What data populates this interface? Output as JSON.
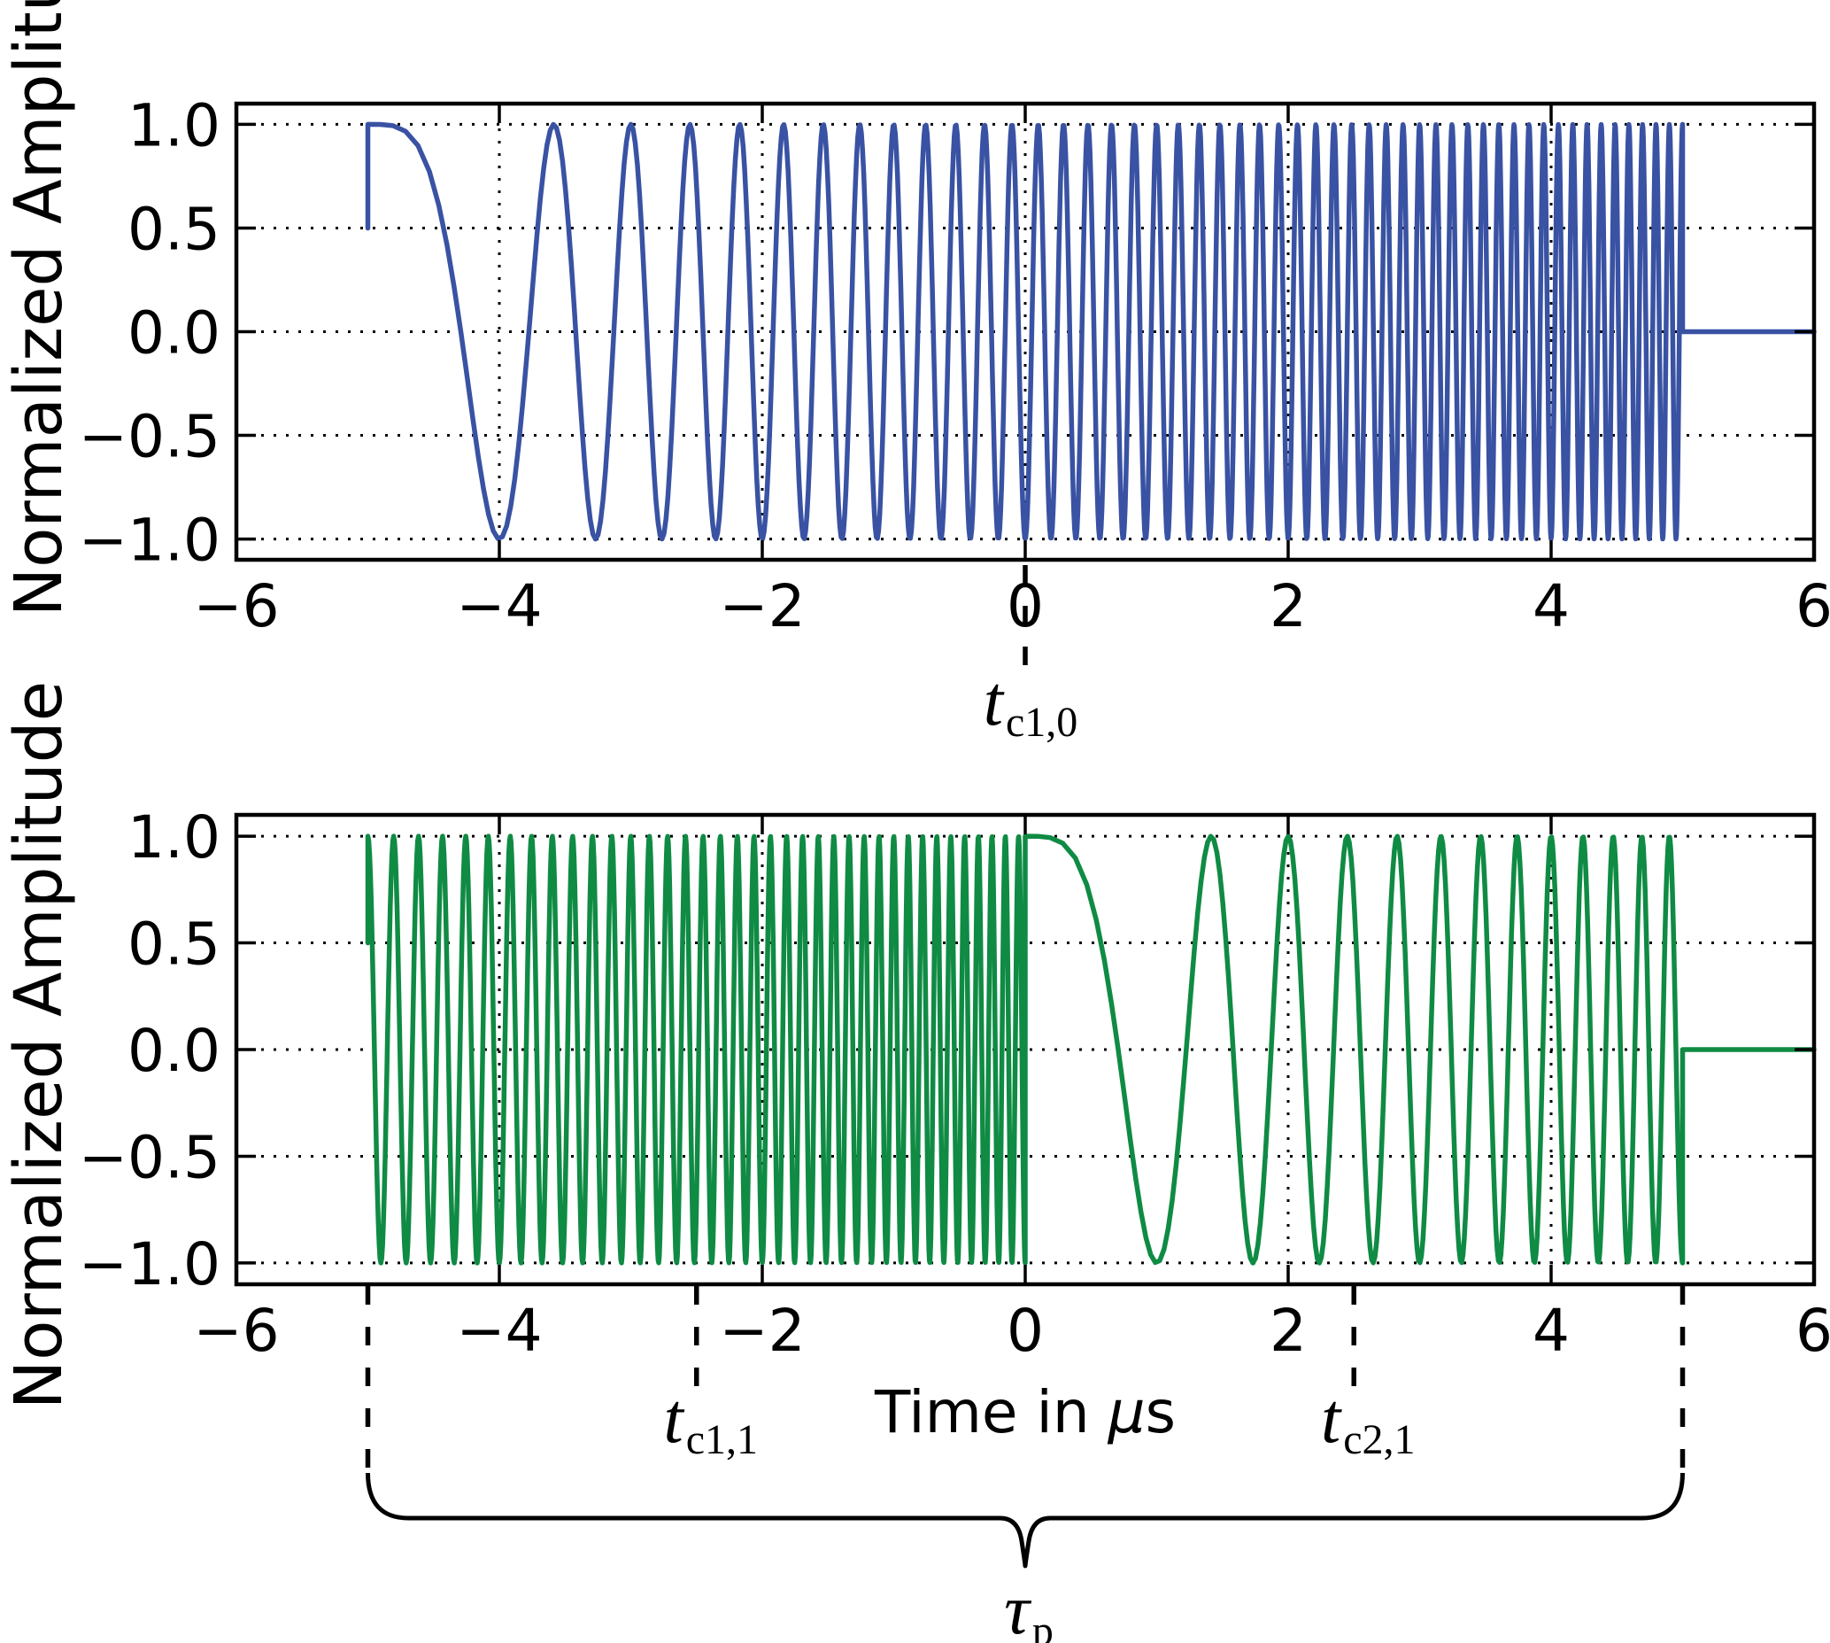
{
  "figure": {
    "title": "",
    "ylabel": "Normalized Amplitude",
    "xlabel_pre": "Time in ",
    "xlabel_mu": "μ",
    "xlabel_post": "s",
    "background_color": "#ffffff",
    "axis_color": "#000000",
    "grid_style": "dotted"
  },
  "chart_data": [
    {
      "type": "line",
      "panel": "top",
      "title": "",
      "ylabel": "Normalized Amplitude",
      "xlabel": "",
      "line_color": "#3952a3",
      "xlim": [
        -6,
        6
      ],
      "ylim": [
        -1.1,
        1.1
      ],
      "x_ticks": [
        -6,
        -4,
        -2,
        0,
        2,
        4,
        6
      ],
      "x_tick_labels": [
        "−6",
        "−4",
        "−2",
        "0",
        "2",
        "4",
        "6"
      ],
      "y_ticks": [
        1.0,
        0.5,
        0.0,
        -0.5,
        -1.0
      ],
      "y_tick_labels": [
        "1.0",
        "0.5",
        "0.0",
        "−0.5",
        "−1.0"
      ],
      "grid": "dotted",
      "legend": "none",
      "signal": {
        "kind": "linear_up_chirp",
        "description": "cos of quadratic phase; instantaneous frequency rises ~0 to ~10 cycles/us across the pulse",
        "segments": [
          {
            "t_start": -5,
            "t_end": 5,
            "f_start": 0.0,
            "chirp_rate": 1.0
          }
        ],
        "start_sample_amplitude": 0.5,
        "flat_zero": [
          5,
          6
        ]
      },
      "annotations": [
        {
          "id": "tc10",
          "x": 0,
          "line_y_from": 638,
          "line_y_to": 768
        }
      ]
    },
    {
      "type": "line",
      "panel": "bottom",
      "title": "",
      "ylabel": "Normalized Amplitude",
      "xlabel": "Time in μs",
      "line_color": "#0f8b44",
      "xlim": [
        -6,
        6
      ],
      "ylim": [
        -1.1,
        1.1
      ],
      "x_ticks": [
        -6,
        -4,
        -2,
        0,
        2,
        4,
        6
      ],
      "x_tick_labels": [
        "−6",
        "−4",
        "−2",
        "0",
        "2",
        "4",
        "6"
      ],
      "y_ticks": [
        1.0,
        0.5,
        0.0,
        -0.5,
        -1.0
      ],
      "y_tick_labels": [
        "1.0",
        "0.5",
        "0.0",
        "−0.5",
        "−1.0"
      ],
      "grid": "dotted",
      "legend": "none",
      "signal": {
        "kind": "wrapped_linear_chirp",
        "description": "second half of chirp (fast, 5 to 10 cycles/us) on [-5,0), then restart of slow chirp (0 to 5 cycles/us) on [0,5]",
        "segments": [
          {
            "t_start": -5,
            "t_end": 0,
            "f_start": 5.0,
            "chirp_rate": 1.0
          },
          {
            "t_start": 0,
            "t_end": 5,
            "f_start": 0.0,
            "chirp_rate": 1.0
          }
        ],
        "start_sample_amplitude": 0.5,
        "flat_zero": [
          5,
          6
        ]
      },
      "annotations": [
        {
          "id": "tc11",
          "x": -2.5,
          "line_y_from": 1452,
          "line_y_to": 1576
        },
        {
          "id": "tc21",
          "x": 2.5,
          "line_y_from": 1452,
          "line_y_to": 1576
        }
      ],
      "brace": {
        "x_start": -5,
        "x_end": 5,
        "pointer_x": 0,
        "label_id": "tau"
      }
    }
  ],
  "annotations": {
    "tc10": {
      "base": "t",
      "sub": "c1,0",
      "x": 0
    },
    "tc11": {
      "base": "t",
      "sub": "c1,1",
      "x": -2.5
    },
    "tc21": {
      "base": "t",
      "sub": "c2,1",
      "x": 2.5
    },
    "tau": {
      "base": "τ",
      "sub": "p",
      "x_span": [
        -5,
        5
      ]
    }
  }
}
